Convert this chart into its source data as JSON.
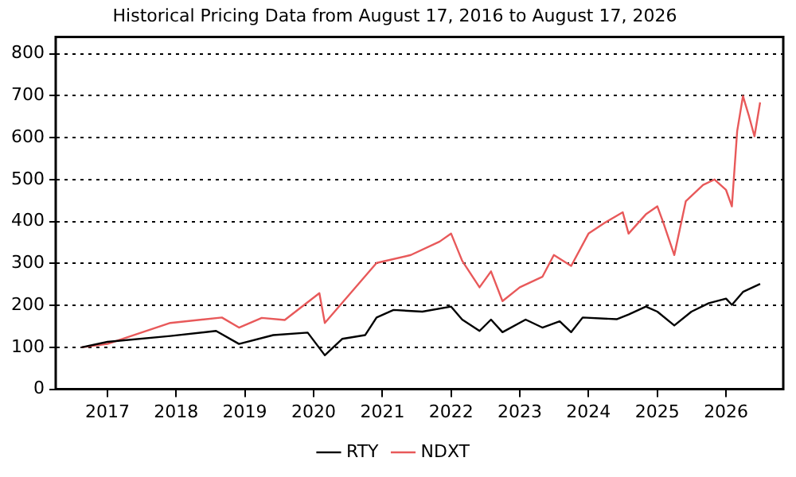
{
  "chart_data": {
    "type": "line",
    "title": "Historical Pricing Data from August 17, 2016 to August 17, 2026",
    "xlim": [
      "2016-04-01",
      "2026-11-01"
    ],
    "xticks": [
      "2017",
      "2018",
      "2019",
      "2020",
      "2021",
      "2022",
      "2023",
      "2024",
      "2025",
      "2026"
    ],
    "ylim": [
      0,
      840
    ],
    "yticks": [
      0,
      100,
      200,
      300,
      400,
      500,
      600,
      700,
      800
    ],
    "grid": "y",
    "legend": "bottom",
    "line_style": "solid",
    "marker": "none",
    "series": [
      {
        "name": "RTY",
        "color": "#000000",
        "x": [
          "2016-08-17",
          "2017-01",
          "2017-12",
          "2018-08",
          "2018-12",
          "2019-06",
          "2019-12",
          "2020-03",
          "2020-06",
          "2020-10",
          "2020-12",
          "2021-03",
          "2021-08",
          "2022-01",
          "2022-03",
          "2022-06",
          "2022-08",
          "2022-10",
          "2023-02",
          "2023-05",
          "2023-08",
          "2023-10",
          "2023-12",
          "2024-06",
          "2024-08",
          "2024-11",
          "2025-01",
          "2025-04",
          "2025-07",
          "2025-10",
          "2026-01",
          "2026-02",
          "2026-04",
          "2026-07"
        ],
        "values": [
          100,
          113,
          127,
          139,
          108,
          129,
          135,
          81,
          120,
          129,
          171,
          189,
          185,
          197,
          166,
          139,
          166,
          136,
          166,
          147,
          162,
          136,
          171,
          167,
          178,
          197,
          185,
          152,
          185,
          205,
          216,
          201,
          232,
          251
        ]
      },
      {
        "name": "NDXT",
        "color": "#e8595a",
        "x": [
          "2016-08-17",
          "2017-01",
          "2017-12",
          "2018-09",
          "2018-12",
          "2019-04",
          "2019-08",
          "2020-02",
          "2020-03",
          "2020-12",
          "2021-06",
          "2021-11",
          "2022-01",
          "2022-03",
          "2022-06",
          "2022-08",
          "2022-10",
          "2023-01",
          "2023-05",
          "2023-07",
          "2023-10",
          "2024-01",
          "2024-04",
          "2024-07",
          "2024-08",
          "2024-11",
          "2025-01",
          "2025-02",
          "2025-04",
          "2025-06",
          "2025-09",
          "2025-11",
          "2026-01",
          "2026-02",
          "2026-03",
          "2026-04",
          "2026-05",
          "2026-06",
          "2026-07"
        ],
        "values": [
          100,
          108,
          158,
          171,
          147,
          170,
          165,
          229,
          158,
          301,
          320,
          352,
          371,
          306,
          243,
          281,
          210,
          243,
          268,
          320,
          294,
          371,
          398,
          422,
          371,
          417,
          436,
          398,
          320,
          448,
          487,
          500,
          475,
          436,
          615,
          699,
          654,
          603,
          684
        ]
      }
    ]
  }
}
